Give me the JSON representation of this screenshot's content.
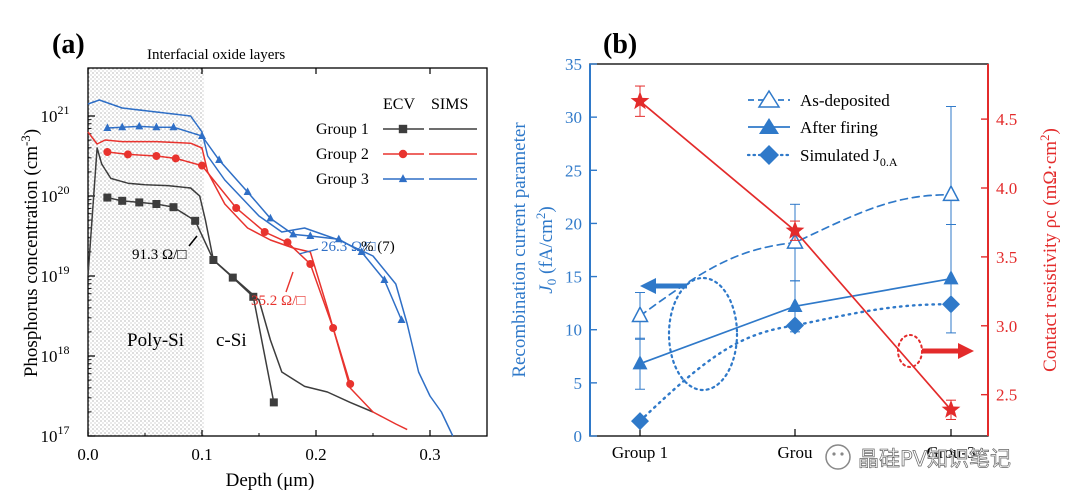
{
  "panel_a_label": "(a)",
  "panel_b_label": "(b)",
  "watermark": "晶硅PV知识笔记",
  "colors": {
    "group1": "#3d3d3d",
    "group2": "#e8332e",
    "group3": "#2f6fc6",
    "axis_left_b": "#2f79c9",
    "axis_right_b": "#e32b2b"
  },
  "chart_data": [
    {
      "type": "line",
      "title": "",
      "xlabel": "Depth (μm)",
      "ylabel": "Phosphorus concentration (cm⁻³)",
      "ylabel_main": "Phosphorus concentration (cm",
      "ylabel_sup": "-3",
      "ylabel_end": ")",
      "xlim": [
        0,
        0.35
      ],
      "ylim_log10": [
        17,
        21.6
      ],
      "yscale": "log",
      "x_ticks": [
        "0.0",
        "0.1",
        "0.2",
        "0.3"
      ],
      "y_ticks": [
        {
          "base": "10",
          "exp": "17",
          "v": 17
        },
        {
          "base": "10",
          "exp": "18",
          "v": 18
        },
        {
          "base": "10",
          "exp": "19",
          "v": 19
        },
        {
          "base": "10",
          "exp": "20",
          "v": 20
        },
        {
          "base": "10",
          "exp": "21",
          "v": 21
        }
      ],
      "shaded_region": {
        "x": [
          0,
          0.102
        ],
        "label": "Interfacial oxide layers"
      },
      "region_labels": {
        "left": "Poly-Si",
        "right": "c-Si"
      },
      "legend_headers": {
        "ecv": "ECV",
        "sims": "SIMS"
      },
      "annotations": {
        "group1": "91.3 Ω/□",
        "group2": "35.2 Ω/□",
        "group3": "26.3 Ω/□",
        "overlap_tail": "% (7)"
      },
      "series": [
        {
          "name": "Group 1",
          "color": "#3d3d3d",
          "marker": "square",
          "ecv": {
            "x": [
              0.017,
              0.03,
              0.045,
              0.06,
              0.075,
              0.094,
              0.11,
              0.127,
              0.145,
              0.163
            ],
            "log10": [
              19.98,
              19.94,
              19.92,
              19.9,
              19.86,
              19.69,
              19.2,
              18.98,
              18.74,
              17.42
            ]
          },
          "sims": {
            "x": [
              0.0,
              0.008,
              0.012,
              0.02,
              0.035,
              0.05,
              0.07,
              0.09,
              0.098,
              0.103,
              0.11,
              0.13,
              0.15,
              0.16,
              0.17,
              0.19,
              0.21,
              0.23,
              0.25
            ],
            "log10": [
              19.0,
              20.6,
              20.4,
              20.22,
              20.16,
              20.14,
              20.13,
              20.1,
              20.0,
              19.7,
              19.2,
              18.95,
              18.7,
              18.2,
              17.8,
              17.62,
              17.55,
              17.42,
              17.3
            ]
          }
        },
        {
          "name": "Group 2",
          "color": "#e8332e",
          "marker": "circle",
          "ecv": {
            "x": [
              0.017,
              0.035,
              0.06,
              0.077,
              0.1,
              0.13,
              0.155,
              0.175,
              0.195,
              0.215,
              0.23
            ],
            "log10": [
              20.55,
              20.52,
              20.5,
              20.47,
              20.38,
              19.85,
              19.55,
              19.42,
              19.15,
              18.35,
              17.65
            ]
          },
          "sims": {
            "x": [
              0.0,
              0.008,
              0.015,
              0.03,
              0.06,
              0.09,
              0.1,
              0.105,
              0.12,
              0.14,
              0.16,
              0.18,
              0.195,
              0.21,
              0.23,
              0.25,
              0.27,
              0.28
            ],
            "log10": [
              20.8,
              20.65,
              20.7,
              20.68,
              20.68,
              20.66,
              20.6,
              20.3,
              19.9,
              19.6,
              19.45,
              19.35,
              19.3,
              18.6,
              17.6,
              17.3,
              17.15,
              17.08
            ]
          }
        },
        {
          "name": "Group 3",
          "color": "#2f6fc6",
          "marker": "triangle",
          "ecv": {
            "x": [
              0.017,
              0.03,
              0.045,
              0.06,
              0.075,
              0.1,
              0.115,
              0.14,
              0.16,
              0.18,
              0.195,
              0.22,
              0.24,
              0.26,
              0.275
            ],
            "log10": [
              20.85,
              20.86,
              20.87,
              20.86,
              20.86,
              20.75,
              20.45,
              20.05,
              19.72,
              19.52,
              19.5,
              19.46,
              19.3,
              18.95,
              18.45
            ]
          },
          "sims": {
            "x": [
              0.0,
              0.01,
              0.03,
              0.06,
              0.09,
              0.1,
              0.105,
              0.12,
              0.15,
              0.17,
              0.19,
              0.2,
              0.22,
              0.25,
              0.27,
              0.28,
              0.29,
              0.3,
              0.31,
              0.32
            ],
            "log10": [
              21.15,
              21.2,
              21.1,
              21.05,
              21.0,
              20.8,
              20.5,
              20.2,
              19.75,
              19.55,
              19.6,
              19.55,
              19.45,
              19.25,
              18.9,
              18.4,
              17.8,
              17.5,
              17.3,
              17.0
            ]
          }
        }
      ]
    },
    {
      "type": "line",
      "title": "",
      "xlabel": "",
      "categories": [
        "Group 1",
        "Group 2",
        "Group 3"
      ],
      "category_labels_visible": [
        "Group 1",
        "Grou",
        "Grou-3"
      ],
      "ylabel_left_line1": "Recombination current parameter",
      "ylabel_left_line2_a": "J",
      "ylabel_left_line2_sub": "0",
      "ylabel_left_line2_b": " (fA/cm",
      "ylabel_left_line2_sup": "2",
      "ylabel_left_line2_c": ")",
      "ylabel_right_main": "Contact resistivity ρc (mΩ·cm",
      "ylabel_right_sup": "2",
      "ylabel_right_end": ")",
      "ylim_left": [
        0,
        35
      ],
      "ylim_right": [
        2.2,
        4.9
      ],
      "y_ticks_left": [
        "0",
        "5",
        "10",
        "15",
        "20",
        "25",
        "30",
        "35"
      ],
      "y_ticks_right": [
        "2.5",
        "3.0",
        "3.5",
        "4.0",
        "4.5"
      ],
      "legend": {
        "as_deposited": "As-deposited",
        "after_firing": "After firing",
        "simulated_main": "Simulated J",
        "simulated_sub": "0.A"
      },
      "series": [
        {
          "name": "As-deposited",
          "axis": "left",
          "style": "dashed",
          "marker": "triangle-open",
          "values": [
            11.3,
            18.2,
            22.7
          ],
          "err": [
            2.2,
            3.6,
            8.3
          ]
        },
        {
          "name": "After firing",
          "axis": "left",
          "style": "solid",
          "marker": "triangle",
          "values": [
            6.8,
            12.2,
            14.8
          ],
          "err": [
            2.4,
            2.4,
            5.1
          ]
        },
        {
          "name": "Simulated J0.A",
          "axis": "left",
          "style": "dotted",
          "marker": "diamond",
          "values": [
            1.4,
            10.4,
            12.4
          ],
          "err": [
            0,
            0,
            0
          ]
        },
        {
          "name": "Contact resistivity",
          "axis": "right",
          "style": "solid",
          "marker": "star",
          "values": [
            4.63,
            3.69,
            2.39
          ],
          "err": [
            0.11,
            0.07,
            0.07
          ]
        }
      ]
    }
  ]
}
